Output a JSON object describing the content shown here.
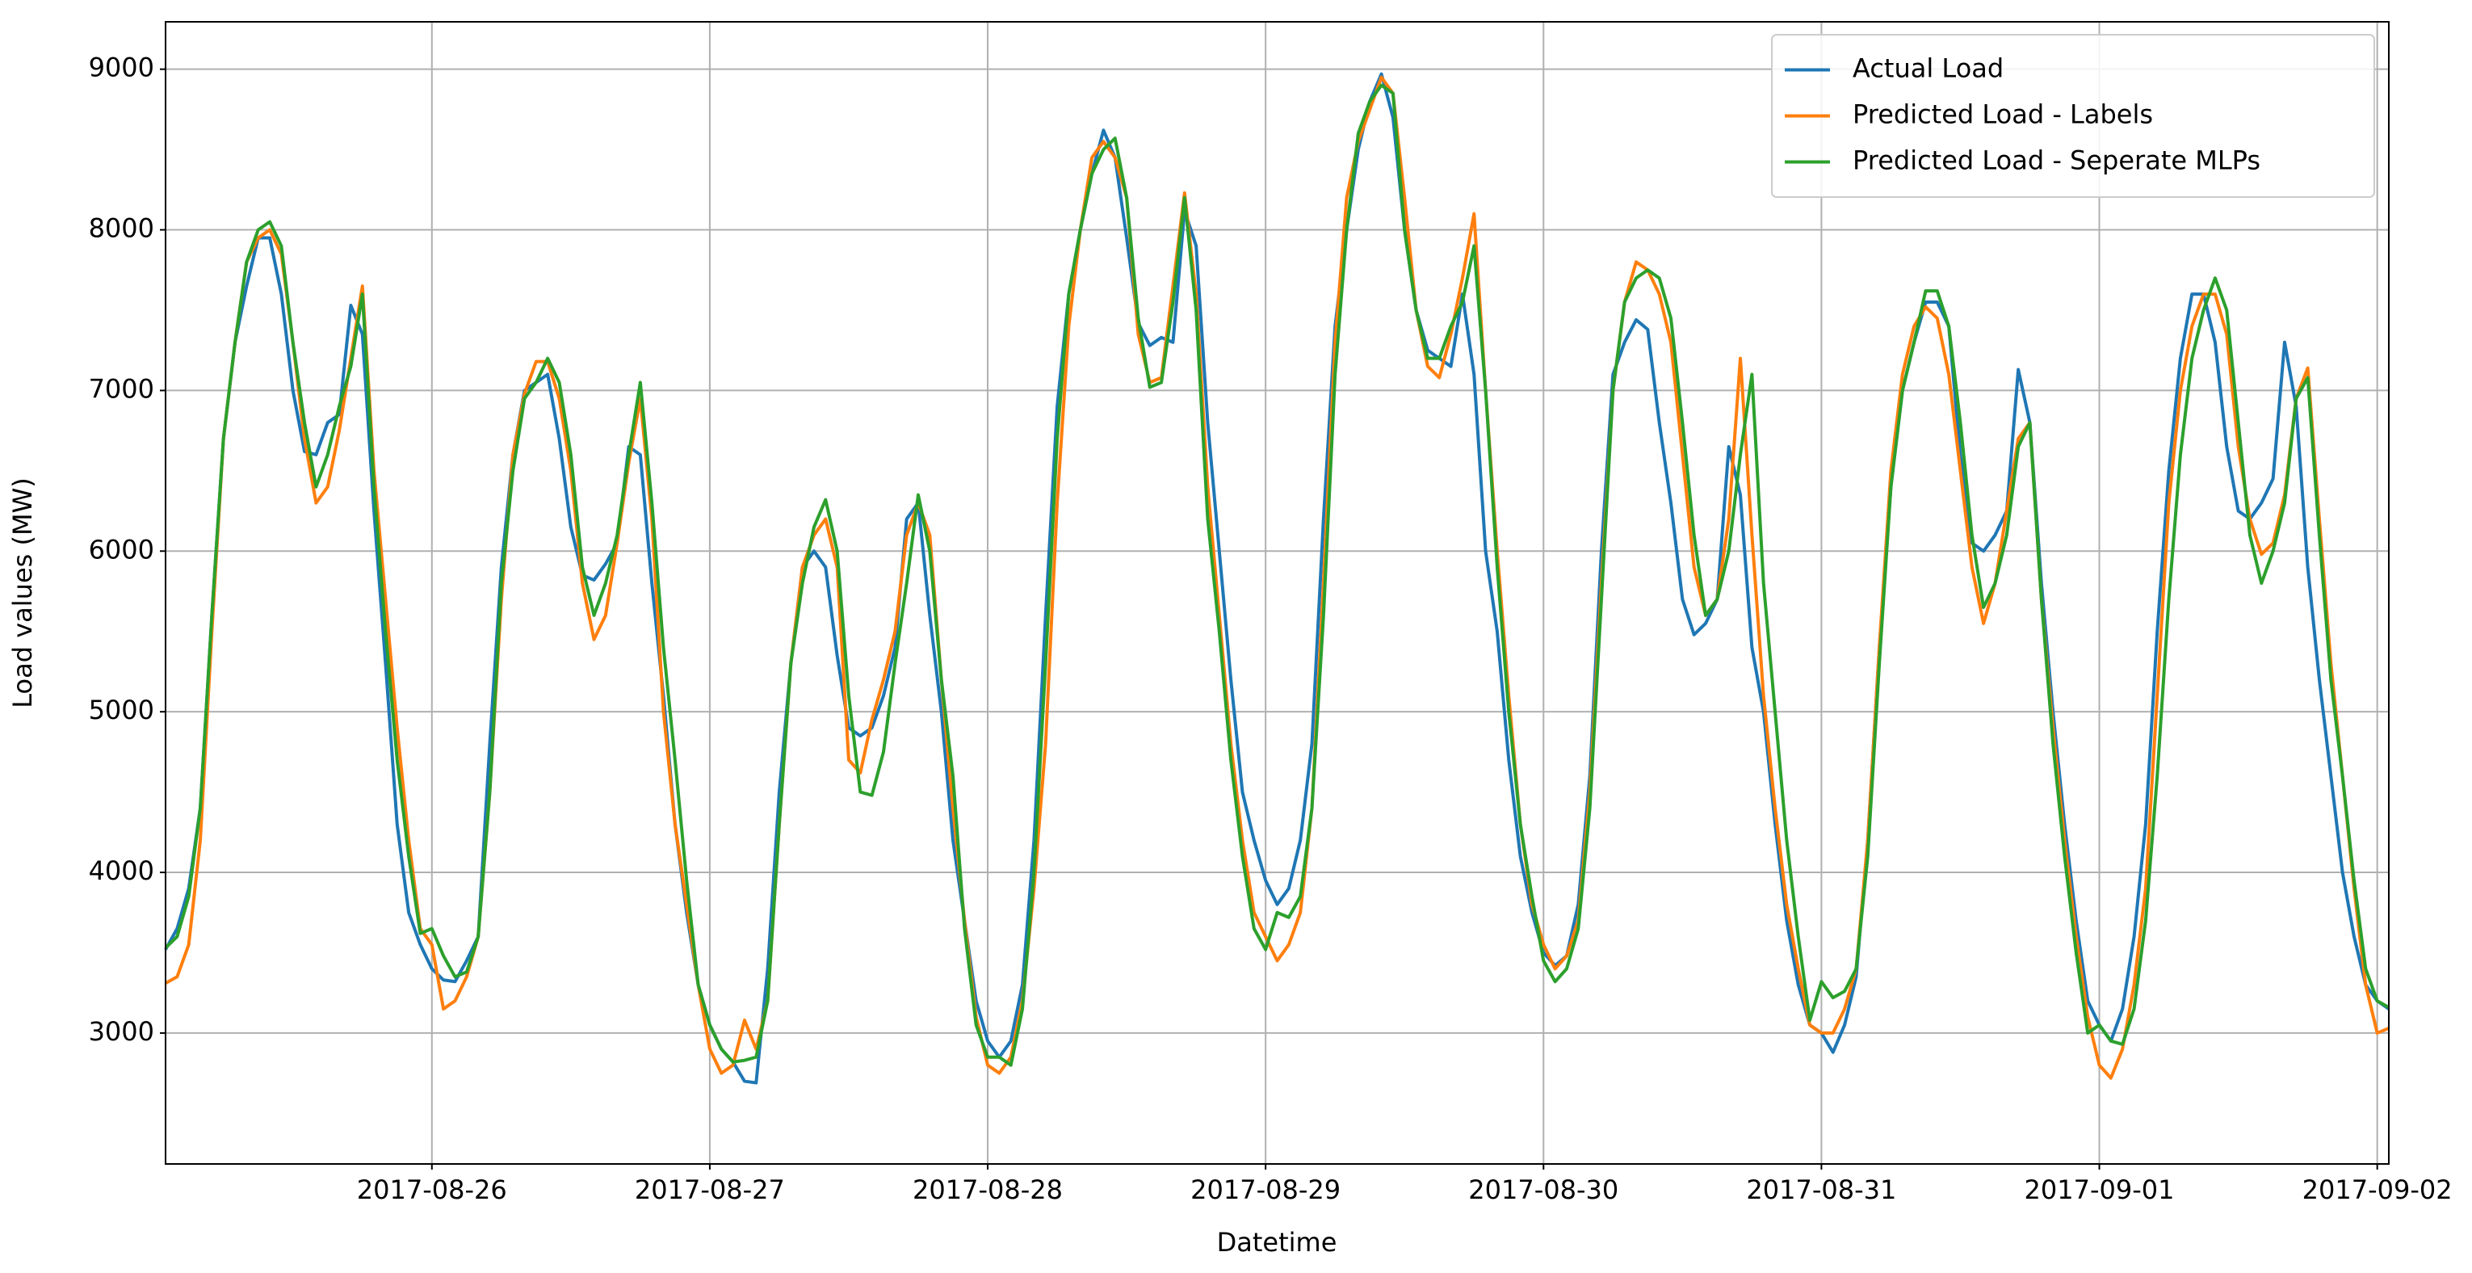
{
  "chart_data": {
    "type": "line",
    "xlabel": "Datetime",
    "ylabel": "Load values (MW)",
    "categories": [
      null,
      null,
      null,
      null,
      null,
      null,
      null,
      null,
      null,
      null,
      null,
      null,
      null,
      null,
      null,
      null,
      null,
      null,
      null,
      null,
      null,
      null,
      null,
      "2017-08-26",
      null,
      null,
      null,
      null,
      null,
      null,
      null,
      null,
      null,
      null,
      null,
      null,
      null,
      null,
      null,
      null,
      null,
      null,
      null,
      null,
      null,
      null,
      null,
      "2017-08-27",
      null,
      null,
      null,
      null,
      null,
      null,
      null,
      null,
      null,
      null,
      null,
      null,
      null,
      null,
      null,
      null,
      null,
      null,
      null,
      null,
      null,
      null,
      null,
      "2017-08-28",
      null,
      null,
      null,
      null,
      null,
      null,
      null,
      null,
      null,
      null,
      null,
      null,
      null,
      null,
      null,
      null,
      null,
      null,
      null,
      null,
      null,
      null,
      null,
      "2017-08-29",
      null,
      null,
      null,
      null,
      null,
      null,
      null,
      null,
      null,
      null,
      null,
      null,
      null,
      null,
      null,
      null,
      null,
      null,
      null,
      null,
      null,
      null,
      null,
      "2017-08-30",
      null,
      null,
      null,
      null,
      null,
      null,
      null,
      null,
      null,
      null,
      null,
      null,
      null,
      null,
      null,
      null,
      null,
      null,
      null,
      null,
      null,
      null,
      null,
      "2017-08-31",
      null,
      null,
      null,
      null,
      null,
      null,
      null,
      null,
      null,
      null,
      null,
      null,
      null,
      null,
      null,
      null,
      null,
      null,
      null,
      null,
      null,
      null,
      null,
      "2017-09-01",
      null,
      null,
      null,
      null,
      null,
      null,
      null,
      null,
      null,
      null,
      null,
      null,
      null,
      null,
      null,
      null,
      null,
      null,
      null,
      null,
      null,
      null,
      null,
      "2017-09-02",
      null
    ],
    "series": [
      {
        "name": "Actual Load",
        "color": "#1f77b4",
        "values": [
          3520,
          3650,
          3900,
          4400,
          5600,
          6700,
          7300,
          7650,
          7950,
          7950,
          7600,
          7000,
          6620,
          6600,
          6800,
          6850,
          7530,
          7350,
          6250,
          5300,
          4300,
          3750,
          3550,
          3400,
          3330,
          3320,
          3450,
          3600,
          4800,
          5900,
          6600,
          7000,
          7050,
          7100,
          6700,
          6150,
          5850,
          5820,
          5920,
          6050,
          6650,
          6600,
          5800,
          5100,
          4300,
          3750,
          3300,
          3050,
          2900,
          2820,
          2700,
          2690,
          3400,
          4500,
          5300,
          5900,
          6000,
          5900,
          5350,
          4900,
          4850,
          4900,
          5100,
          5400,
          6200,
          6300,
          5600,
          5000,
          4200,
          3700,
          3200,
          2950,
          2850,
          2950,
          3300,
          4200,
          5600,
          6900,
          7600,
          8000,
          8350,
          8620,
          8450,
          7950,
          7420,
          7280,
          7330,
          7300,
          8120,
          7900,
          6800,
          6000,
          5200,
          4500,
          4200,
          3950,
          3800,
          3900,
          4200,
          4800,
          6200,
          7400,
          8000,
          8500,
          8800,
          8970,
          8700,
          8000,
          7500,
          7250,
          7200,
          7150,
          7600,
          7100,
          6000,
          5500,
          4700,
          4100,
          3750,
          3500,
          3420,
          3480,
          3800,
          4600,
          6000,
          7100,
          7300,
          7440,
          7380,
          6800,
          6300,
          5700,
          5480,
          5550,
          5700,
          6650,
          6350,
          5400,
          5000,
          4300,
          3700,
          3300,
          3050,
          3000,
          2880,
          3050,
          3350,
          4200,
          5400,
          6400,
          7000,
          7300,
          7550,
          7550,
          7400,
          6600,
          6050,
          6000,
          6100,
          6250,
          7130,
          6800,
          5800,
          5000,
          4300,
          3700,
          3200,
          3050,
          2950,
          3150,
          3600,
          4300,
          5500,
          6500,
          7200,
          7600,
          7600,
          7300,
          6650,
          6250,
          6200,
          6300,
          6450,
          7300,
          6900,
          5900,
          5200,
          4600,
          4000,
          3600,
          3300,
          3200,
          3150
        ]
      },
      {
        "name": "Predicted Load - Labels",
        "color": "#ff7f0e",
        "values": [
          3310,
          3350,
          3550,
          4200,
          5500,
          6700,
          7300,
          7800,
          7950,
          8000,
          7850,
          7300,
          6700,
          6300,
          6400,
          6750,
          7200,
          7650,
          6500,
          5700,
          4900,
          4200,
          3650,
          3550,
          3150,
          3200,
          3350,
          3600,
          4500,
          5700,
          6600,
          6980,
          7180,
          7180,
          6950,
          6500,
          5800,
          5450,
          5600,
          6050,
          6550,
          6950,
          6200,
          5000,
          4300,
          3800,
          3300,
          2900,
          2750,
          2800,
          3080,
          2900,
          3200,
          4300,
          5300,
          5900,
          6100,
          6200,
          5900,
          4700,
          4620,
          4950,
          5200,
          5500,
          6100,
          6300,
          6100,
          5200,
          4400,
          3700,
          3100,
          2800,
          2750,
          2850,
          3200,
          3900,
          4800,
          6300,
          7400,
          8000,
          8450,
          8550,
          8450,
          8200,
          7350,
          7050,
          7080,
          7650,
          8230,
          7600,
          6400,
          5600,
          4800,
          4200,
          3750,
          3600,
          3450,
          3550,
          3750,
          4400,
          5800,
          7300,
          8200,
          8550,
          8750,
          8950,
          8850,
          8200,
          7500,
          7150,
          7080,
          7350,
          7700,
          8100,
          7000,
          6000,
          5100,
          4300,
          3800,
          3550,
          3400,
          3480,
          3700,
          4500,
          5800,
          7000,
          7550,
          7800,
          7750,
          7600,
          7300,
          6600,
          5900,
          5600,
          5700,
          6200,
          7200,
          6100,
          5100,
          4400,
          3800,
          3400,
          3050,
          3000,
          3000,
          3150,
          3400,
          4200,
          5400,
          6500,
          7100,
          7400,
          7520,
          7450,
          7100,
          6500,
          5900,
          5550,
          5800,
          6250,
          6700,
          6800,
          5700,
          4900,
          4200,
          3600,
          3100,
          2800,
          2720,
          2900,
          3300,
          3900,
          5100,
          6300,
          7000,
          7400,
          7600,
          7600,
          7350,
          6650,
          6200,
          5980,
          6050,
          6350,
          6950,
          7140,
          6200,
          5300,
          4600,
          3900,
          3300,
          3000,
          3030
        ]
      },
      {
        "name": "Predicted Load - Seperate MLPs",
        "color": "#2ca02c",
        "values": [
          3530,
          3600,
          3850,
          4400,
          5600,
          6700,
          7300,
          7800,
          8000,
          8050,
          7900,
          7300,
          6800,
          6400,
          6600,
          6900,
          7150,
          7600,
          6400,
          5500,
          4700,
          4100,
          3620,
          3650,
          3480,
          3350,
          3380,
          3600,
          4500,
          5800,
          6500,
          6950,
          7050,
          7200,
          7050,
          6600,
          5900,
          5600,
          5800,
          6100,
          6600,
          7050,
          6300,
          5400,
          4700,
          3950,
          3300,
          3050,
          2900,
          2820,
          2830,
          2850,
          3200,
          4300,
          5300,
          5800,
          6150,
          6320,
          6000,
          5100,
          4500,
          4480,
          4750,
          5300,
          5800,
          6350,
          6000,
          5200,
          4600,
          3650,
          3050,
          2850,
          2850,
          2800,
          3150,
          4000,
          5300,
          6700,
          7600,
          8000,
          8350,
          8500,
          8570,
          8200,
          7450,
          7020,
          7050,
          7550,
          8200,
          7500,
          6200,
          5500,
          4700,
          4100,
          3650,
          3520,
          3750,
          3720,
          3850,
          4400,
          5600,
          7100,
          8000,
          8600,
          8800,
          8900,
          8850,
          8000,
          7500,
          7200,
          7200,
          7400,
          7550,
          7900,
          7000,
          5900,
          5000,
          4300,
          3850,
          3450,
          3320,
          3400,
          3650,
          4400,
          5700,
          7000,
          7550,
          7700,
          7750,
          7700,
          7450,
          6800,
          6100,
          5600,
          5700,
          6000,
          6600,
          7100,
          5800,
          5000,
          4200,
          3600,
          3080,
          3320,
          3220,
          3260,
          3400,
          4100,
          5300,
          6400,
          7000,
          7300,
          7620,
          7620,
          7400,
          6800,
          6100,
          5650,
          5800,
          6100,
          6650,
          6800,
          5700,
          4800,
          4100,
          3500,
          3000,
          3050,
          2950,
          2930,
          3150,
          3700,
          4600,
          5700,
          6600,
          7200,
          7500,
          7700,
          7500,
          6800,
          6100,
          5800,
          6000,
          6300,
          6950,
          7080,
          6100,
          5200,
          4600,
          3950,
          3400,
          3200,
          3160
        ]
      }
    ],
    "ylim": [
      2185,
      9295
    ],
    "yticks": [
      3000,
      4000,
      5000,
      6000,
      7000,
      8000,
      9000
    ],
    "grid": true,
    "legend": "upper right"
  }
}
